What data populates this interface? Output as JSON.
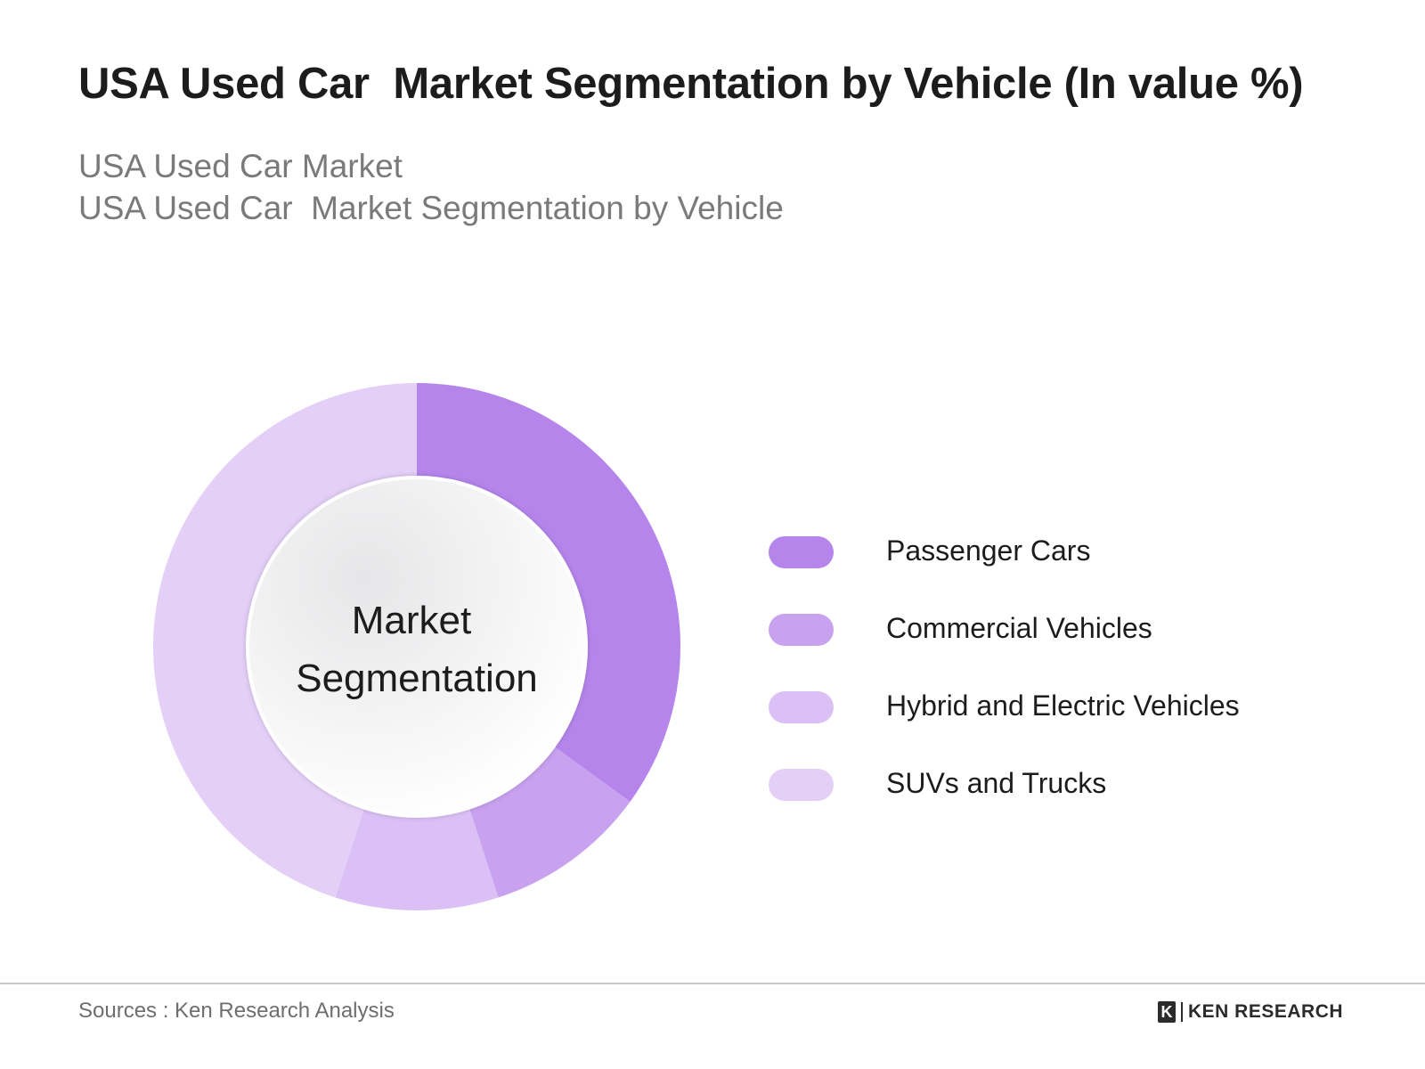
{
  "header": {
    "title": "USA Used Car  Market Segmentation by Vehicle (In value %)",
    "subtitle_line1": "USA Used Car Market",
    "subtitle_line2": "USA Used Car  Market Segmentation by Vehicle"
  },
  "chart_data": {
    "type": "pie",
    "subtype": "donut",
    "center_label": [
      "Market",
      "Segmentation"
    ],
    "categories": [
      "Passenger Cars",
      "Commercial Vehicles",
      "Hybrid and Electric Vehicles",
      "SUVs and Trucks"
    ],
    "values": [
      35,
      10,
      10,
      45
    ],
    "colors": [
      "#b585ec",
      "#c8a1ef",
      "#dbc0f6",
      "#e4cff7"
    ],
    "legend_position": "right",
    "start_angle_deg": 0,
    "direction": "clockwise"
  },
  "footer": {
    "source": "Sources : Ken Research Analysis",
    "brand_logo": "K",
    "brand_name": "KEN RESEARCH"
  }
}
